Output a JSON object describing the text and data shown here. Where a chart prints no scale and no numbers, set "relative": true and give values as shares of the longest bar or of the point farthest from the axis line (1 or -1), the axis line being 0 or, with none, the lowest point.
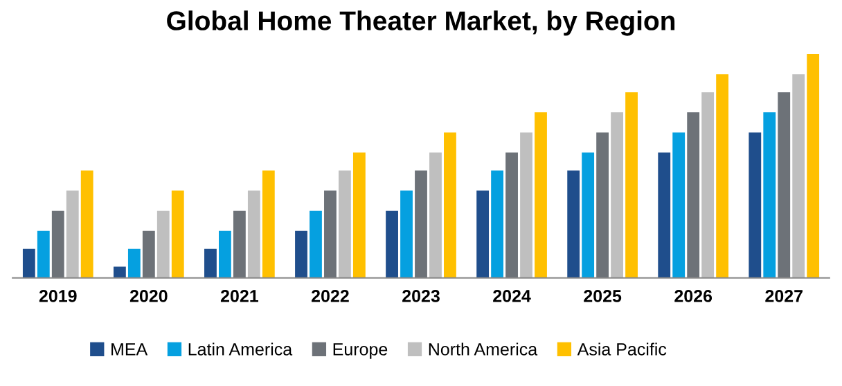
{
  "chart_data": {
    "type": "bar",
    "title": "Global Home Theater Market, by Region",
    "relative": true,
    "categories": [
      "2019",
      "2020",
      "2021",
      "2022",
      "2023",
      "2024",
      "2025",
      "2026",
      "2027"
    ],
    "series": [
      {
        "name": "MEA",
        "color": "#1f4e8c",
        "values": [
          0.13,
          0.05,
          0.13,
          0.21,
          0.3,
          0.39,
          0.48,
          0.56,
          0.65
        ]
      },
      {
        "name": "Latin America",
        "color": "#05a0e0",
        "values": [
          0.21,
          0.13,
          0.21,
          0.3,
          0.39,
          0.48,
          0.56,
          0.65,
          0.74
        ]
      },
      {
        "name": "Europe",
        "color": "#6d7278",
        "values": [
          0.3,
          0.21,
          0.3,
          0.39,
          0.48,
          0.56,
          0.65,
          0.74,
          0.83
        ]
      },
      {
        "name": "North America",
        "color": "#bfbfbf",
        "values": [
          0.39,
          0.3,
          0.39,
          0.48,
          0.56,
          0.65,
          0.74,
          0.83,
          0.91
        ]
      },
      {
        "name": "Asia Pacific",
        "color": "#ffc000",
        "values": [
          0.48,
          0.39,
          0.48,
          0.56,
          0.65,
          0.74,
          0.83,
          0.91,
          1
        ]
      }
    ],
    "legend": "bottom",
    "grid": false
  }
}
